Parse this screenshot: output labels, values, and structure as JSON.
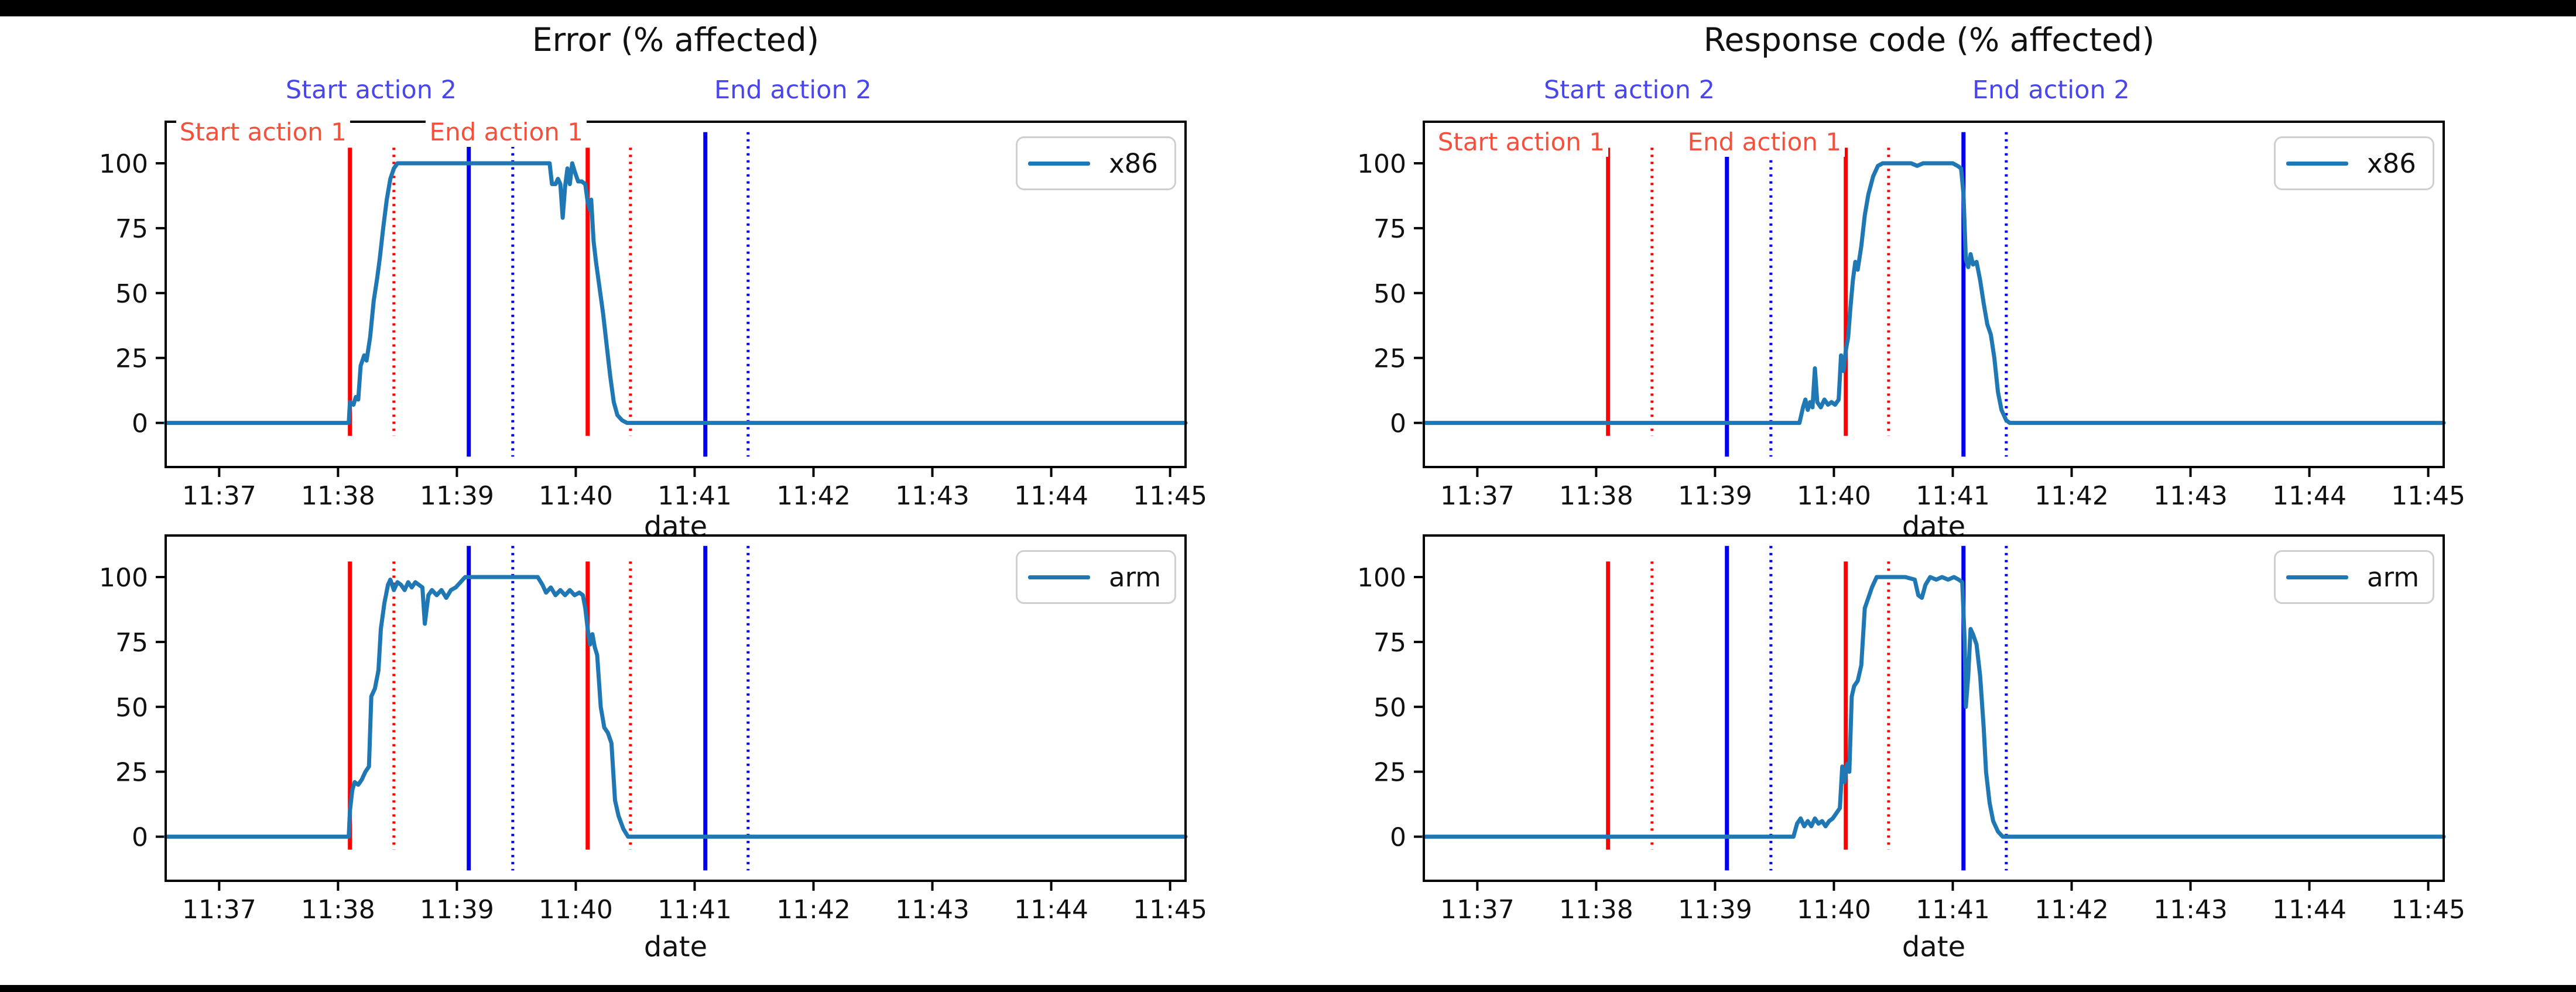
{
  "figure": {
    "background": "#ffffff",
    "frame_bar_color": "#000000",
    "series_color": "#1f77b4",
    "action1_line_color": "#ff0000",
    "action2_line_color": "#0000ee",
    "action1_text_color": "#f4503c",
    "action2_text_color": "#4846ec",
    "xlabel": "date",
    "x_tick_labels": [
      "11:37",
      "11:38",
      "11:39",
      "11:40",
      "11:41",
      "11:42",
      "11:43",
      "11:44",
      "11:45"
    ],
    "y_tick_labels": [
      "0",
      "25",
      "50",
      "75",
      "100"
    ]
  },
  "annotations": {
    "start_action_1": "Start action 1",
    "end_action_1": "End action 1",
    "start_action_2": "Start action 2",
    "end_action_2": "End action 2"
  },
  "action_lines": [
    {
      "name": "action1-start",
      "color": "red",
      "style": "solid",
      "t": 2.1
    },
    {
      "name": "action1-start-detected",
      "color": "red",
      "style": "dotted",
      "t": 2.47
    },
    {
      "name": "action2-start",
      "color": "blue",
      "style": "solid",
      "t": 3.1
    },
    {
      "name": "action2-start-detected",
      "color": "blue",
      "style": "dotted",
      "t": 3.47
    },
    {
      "name": "action1-end",
      "color": "red",
      "style": "solid",
      "t": 4.1
    },
    {
      "name": "action1-end-detected",
      "color": "red",
      "style": "dotted",
      "t": 4.46
    },
    {
      "name": "action2-end",
      "color": "blue",
      "style": "solid",
      "t": 5.09
    },
    {
      "name": "action2-end-detected",
      "color": "blue",
      "style": "dotted",
      "t": 5.45
    }
  ],
  "chart_data": [
    {
      "type": "line",
      "title": "Error (% affected)",
      "legend": "x86",
      "xlabel": "date",
      "ylabel": "",
      "x_unit": "minutes after 11:36",
      "xlim": [
        0.55,
        9.13
      ],
      "ylim": [
        -17,
        116
      ],
      "y_ticks": [
        0,
        25,
        50,
        75,
        100
      ],
      "grid": false,
      "legend_position": "upper right",
      "points": [
        [
          0.55,
          0
        ],
        [
          2.06,
          0
        ],
        [
          2.09,
          0
        ],
        [
          2.1,
          8
        ],
        [
          2.13,
          7
        ],
        [
          2.15,
          10
        ],
        [
          2.17,
          9
        ],
        [
          2.19,
          22
        ],
        [
          2.22,
          26
        ],
        [
          2.24,
          24
        ],
        [
          2.27,
          33
        ],
        [
          2.3,
          47
        ],
        [
          2.33,
          56
        ],
        [
          2.35,
          63
        ],
        [
          2.38,
          75
        ],
        [
          2.41,
          86
        ],
        [
          2.44,
          94
        ],
        [
          2.47,
          98
        ],
        [
          2.5,
          100
        ],
        [
          3.78,
          100
        ],
        [
          3.8,
          92
        ],
        [
          3.83,
          92
        ],
        [
          3.85,
          94
        ],
        [
          3.87,
          92
        ],
        [
          3.89,
          79
        ],
        [
          3.91,
          91
        ],
        [
          3.93,
          98
        ],
        [
          3.95,
          92
        ],
        [
          3.97,
          100
        ],
        [
          3.99,
          97
        ],
        [
          4.02,
          93
        ],
        [
          4.05,
          93
        ],
        [
          4.08,
          92
        ],
        [
          4.1,
          85
        ],
        [
          4.12,
          82
        ],
        [
          4.13,
          86
        ],
        [
          4.15,
          70
        ],
        [
          4.17,
          62
        ],
        [
          4.2,
          52
        ],
        [
          4.23,
          42
        ],
        [
          4.26,
          30
        ],
        [
          4.29,
          18
        ],
        [
          4.32,
          8
        ],
        [
          4.35,
          3
        ],
        [
          4.39,
          1
        ],
        [
          4.43,
          0
        ],
        [
          9.13,
          0
        ]
      ]
    },
    {
      "type": "line",
      "title": "Response code (% affected)",
      "legend": "x86",
      "xlabel": "date",
      "ylabel": "",
      "x_unit": "minutes after 11:36",
      "xlim": [
        0.55,
        9.13
      ],
      "ylim": [
        -17,
        116
      ],
      "y_ticks": [
        0,
        25,
        50,
        75,
        100
      ],
      "grid": false,
      "legend_position": "upper right",
      "points": [
        [
          0.55,
          0
        ],
        [
          3.71,
          0
        ],
        [
          3.74,
          6
        ],
        [
          3.76,
          9
        ],
        [
          3.78,
          5
        ],
        [
          3.8,
          8
        ],
        [
          3.82,
          6
        ],
        [
          3.84,
          21
        ],
        [
          3.86,
          8
        ],
        [
          3.89,
          6
        ],
        [
          3.92,
          9
        ],
        [
          3.95,
          7
        ],
        [
          3.98,
          8
        ],
        [
          4.01,
          7
        ],
        [
          4.04,
          9
        ],
        [
          4.06,
          26
        ],
        [
          4.08,
          20
        ],
        [
          4.1,
          28
        ],
        [
          4.12,
          33
        ],
        [
          4.14,
          45
        ],
        [
          4.16,
          55
        ],
        [
          4.18,
          62
        ],
        [
          4.2,
          59
        ],
        [
          4.23,
          68
        ],
        [
          4.26,
          80
        ],
        [
          4.29,
          88
        ],
        [
          4.33,
          95
        ],
        [
          4.37,
          99
        ],
        [
          4.41,
          100
        ],
        [
          4.65,
          100
        ],
        [
          4.7,
          99
        ],
        [
          4.75,
          100
        ],
        [
          5.0,
          100
        ],
        [
          5.04,
          99
        ],
        [
          5.07,
          98
        ],
        [
          5.09,
          88
        ],
        [
          5.11,
          63
        ],
        [
          5.13,
          60
        ],
        [
          5.15,
          65
        ],
        [
          5.17,
          61
        ],
        [
          5.2,
          62
        ],
        [
          5.23,
          55
        ],
        [
          5.26,
          46
        ],
        [
          5.29,
          38
        ],
        [
          5.32,
          34
        ],
        [
          5.35,
          25
        ],
        [
          5.38,
          12
        ],
        [
          5.41,
          5
        ],
        [
          5.45,
          1
        ],
        [
          5.48,
          0
        ],
        [
          9.13,
          0
        ]
      ]
    },
    {
      "type": "line",
      "title": "",
      "legend": "arm",
      "xlabel": "date",
      "ylabel": "",
      "x_unit": "minutes after 11:36",
      "xlim": [
        0.55,
        9.13
      ],
      "ylim": [
        -17,
        116
      ],
      "y_ticks": [
        0,
        25,
        50,
        75,
        100
      ],
      "grid": false,
      "legend_position": "upper right",
      "points": [
        [
          0.55,
          0
        ],
        [
          2.06,
          0
        ],
        [
          2.09,
          0
        ],
        [
          2.1,
          10
        ],
        [
          2.12,
          18
        ],
        [
          2.14,
          21
        ],
        [
          2.17,
          20
        ],
        [
          2.2,
          22
        ],
        [
          2.23,
          25
        ],
        [
          2.26,
          27
        ],
        [
          2.28,
          54
        ],
        [
          2.31,
          57
        ],
        [
          2.34,
          64
        ],
        [
          2.36,
          80
        ],
        [
          2.39,
          90
        ],
        [
          2.42,
          97
        ],
        [
          2.44,
          99
        ],
        [
          2.47,
          95
        ],
        [
          2.5,
          98
        ],
        [
          2.53,
          97
        ],
        [
          2.56,
          95
        ],
        [
          2.59,
          98
        ],
        [
          2.62,
          96
        ],
        [
          2.65,
          98
        ],
        [
          2.68,
          97
        ],
        [
          2.71,
          96
        ],
        [
          2.73,
          82
        ],
        [
          2.76,
          93
        ],
        [
          2.79,
          95
        ],
        [
          2.83,
          93
        ],
        [
          2.87,
          95
        ],
        [
          2.91,
          92
        ],
        [
          2.95,
          95
        ],
        [
          2.99,
          96
        ],
        [
          3.03,
          98
        ],
        [
          3.07,
          100
        ],
        [
          3.68,
          100
        ],
        [
          3.72,
          97
        ],
        [
          3.75,
          94
        ],
        [
          3.79,
          96
        ],
        [
          3.83,
          93
        ],
        [
          3.87,
          95
        ],
        [
          3.91,
          93
        ],
        [
          3.95,
          95
        ],
        [
          3.99,
          93
        ],
        [
          4.03,
          94
        ],
        [
          4.06,
          93
        ],
        [
          4.08,
          88
        ],
        [
          4.1,
          80
        ],
        [
          4.12,
          74
        ],
        [
          4.14,
          78
        ],
        [
          4.16,
          73
        ],
        [
          4.18,
          70
        ],
        [
          4.21,
          50
        ],
        [
          4.24,
          42
        ],
        [
          4.27,
          40
        ],
        [
          4.3,
          36
        ],
        [
          4.33,
          14
        ],
        [
          4.36,
          8
        ],
        [
          4.4,
          3
        ],
        [
          4.44,
          0
        ],
        [
          9.13,
          0
        ]
      ]
    },
    {
      "type": "line",
      "title": "",
      "legend": "arm",
      "xlabel": "date",
      "ylabel": "",
      "x_unit": "minutes after 11:36",
      "xlim": [
        0.55,
        9.13
      ],
      "ylim": [
        -17,
        116
      ],
      "y_ticks": [
        0,
        25,
        50,
        75,
        100
      ],
      "grid": false,
      "legend_position": "upper right",
      "points": [
        [
          0.55,
          0
        ],
        [
          3.66,
          0
        ],
        [
          3.69,
          5
        ],
        [
          3.72,
          7
        ],
        [
          3.75,
          4
        ],
        [
          3.78,
          6
        ],
        [
          3.81,
          4
        ],
        [
          3.84,
          7
        ],
        [
          3.87,
          5
        ],
        [
          3.9,
          6
        ],
        [
          3.93,
          4
        ],
        [
          3.96,
          6
        ],
        [
          3.99,
          7
        ],
        [
          4.02,
          9
        ],
        [
          4.05,
          11
        ],
        [
          4.07,
          27
        ],
        [
          4.09,
          21
        ],
        [
          4.11,
          28
        ],
        [
          4.13,
          25
        ],
        [
          4.15,
          54
        ],
        [
          4.17,
          58
        ],
        [
          4.2,
          60
        ],
        [
          4.23,
          66
        ],
        [
          4.26,
          88
        ],
        [
          4.29,
          92
        ],
        [
          4.32,
          96
        ],
        [
          4.36,
          100
        ],
        [
          4.6,
          100
        ],
        [
          4.68,
          99
        ],
        [
          4.71,
          93
        ],
        [
          4.74,
          92
        ],
        [
          4.77,
          97
        ],
        [
          4.81,
          100
        ],
        [
          4.86,
          99
        ],
        [
          4.91,
          100
        ],
        [
          4.96,
          99
        ],
        [
          5.01,
          100
        ],
        [
          5.05,
          99
        ],
        [
          5.08,
          98
        ],
        [
          5.1,
          75
        ],
        [
          5.11,
          50
        ],
        [
          5.13,
          62
        ],
        [
          5.15,
          80
        ],
        [
          5.17,
          78
        ],
        [
          5.2,
          74
        ],
        [
          5.23,
          62
        ],
        [
          5.26,
          42
        ],
        [
          5.28,
          25
        ],
        [
          5.31,
          13
        ],
        [
          5.34,
          6
        ],
        [
          5.38,
          2
        ],
        [
          5.42,
          0
        ],
        [
          9.13,
          0
        ]
      ]
    }
  ]
}
